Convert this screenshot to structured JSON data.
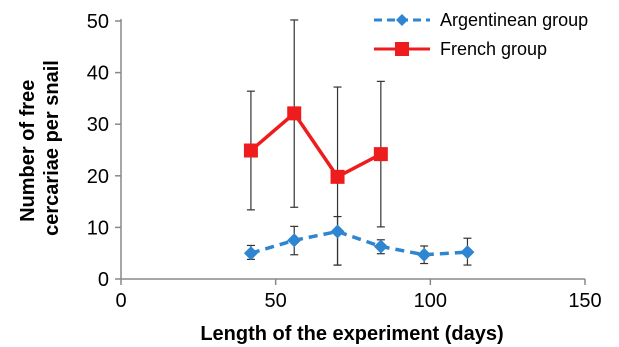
{
  "chart_data": {
    "type": "line",
    "title": "",
    "xlabel": "Length of the experiment (days)",
    "ylabel_lines": [
      "Number of free",
      "cercariae per snail"
    ],
    "xlim": [
      0,
      150
    ],
    "ylim": [
      0,
      50
    ],
    "xticks": [
      0,
      50,
      100,
      150
    ],
    "yticks": [
      0,
      10,
      20,
      30,
      40,
      50
    ],
    "grid": false,
    "legend_position": "top-right",
    "series": [
      {
        "name": "Argentinean group",
        "color": "#2E86D0",
        "line_style": "dashed",
        "marker": "diamond",
        "x": [
          42,
          56,
          70,
          84,
          98,
          112
        ],
        "y": [
          5.0,
          7.5,
          9.2,
          6.3,
          4.7,
          5.2
        ],
        "error_low": [
          3.8,
          4.7,
          2.7,
          4.9,
          3.0,
          2.7
        ],
        "error_high": [
          6.5,
          10.2,
          12.1,
          7.6,
          6.4,
          7.9
        ]
      },
      {
        "name": "French group",
        "color": "#EE1C1C",
        "line_style": "solid",
        "marker": "square",
        "x": [
          42,
          56,
          70,
          84
        ],
        "y": [
          24.9,
          32.1,
          19.8,
          24.2
        ],
        "error_low": [
          13.4,
          13.9,
          2.7,
          10.1
        ],
        "error_high": [
          36.4,
          50.2,
          37.2,
          38.3
        ]
      }
    ]
  }
}
